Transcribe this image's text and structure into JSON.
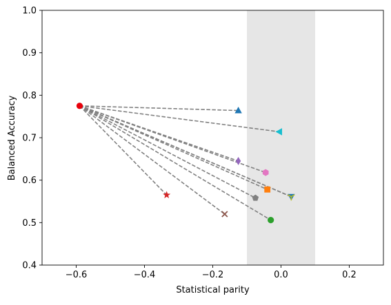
{
  "chart_data": {
    "type": "scatter",
    "title": "",
    "xlabel": "Statistical parity",
    "ylabel": "Balanced Accuracy",
    "xlim": [
      -0.7,
      0.3
    ],
    "ylim": [
      0.4,
      1.0
    ],
    "xticks": [
      -0.6,
      -0.4,
      -0.2,
      0.0,
      0.2
    ],
    "xtick_labels": [
      "−0.6",
      "−0.4",
      "−0.2",
      "0.0",
      "0.2"
    ],
    "yticks": [
      0.4,
      0.5,
      0.6,
      0.7,
      0.8,
      0.9,
      1.0
    ],
    "ytick_labels": [
      "0.4",
      "0.5",
      "0.6",
      "0.7",
      "0.8",
      "0.9",
      "1.0"
    ],
    "grid": false,
    "legend": false,
    "shaded_band": {
      "x": [
        -0.1,
        0.1
      ],
      "color": "#e6e6e6"
    },
    "origin": {
      "x": -0.59,
      "y": 0.775,
      "marker": "circle",
      "color": "#e8000b"
    },
    "connector_style": {
      "color": "#808080",
      "dash": "dashed"
    },
    "points": [
      {
        "x": -0.125,
        "y": 0.764,
        "marker": "triangle-up",
        "color": "#1f77b4"
      },
      {
        "x": -0.005,
        "y": 0.714,
        "marker": "triangle-left",
        "color": "#17becf"
      },
      {
        "x": -0.125,
        "y": 0.645,
        "marker": "thin-diamond",
        "color": "#9467bd"
      },
      {
        "x": -0.045,
        "y": 0.618,
        "marker": "hexagon",
        "color": "#e377c2"
      },
      {
        "x": -0.04,
        "y": 0.578,
        "marker": "square",
        "color": "#ff7f0e"
      },
      {
        "x": 0.03,
        "y": 0.561,
        "marker": "triangle-down",
        "color": "#1f77b4"
      },
      {
        "x": 0.03,
        "y": 0.561,
        "marker": "tri-down",
        "color": "#bcbd22"
      },
      {
        "x": -0.075,
        "y": 0.558,
        "marker": "pentagon",
        "color": "#7f7f7f"
      },
      {
        "x": -0.335,
        "y": 0.565,
        "marker": "star",
        "color": "#d62728"
      },
      {
        "x": -0.165,
        "y": 0.52,
        "marker": "x",
        "color": "#8c564b"
      },
      {
        "x": -0.03,
        "y": 0.506,
        "marker": "circle",
        "color": "#2ca02c"
      }
    ]
  }
}
